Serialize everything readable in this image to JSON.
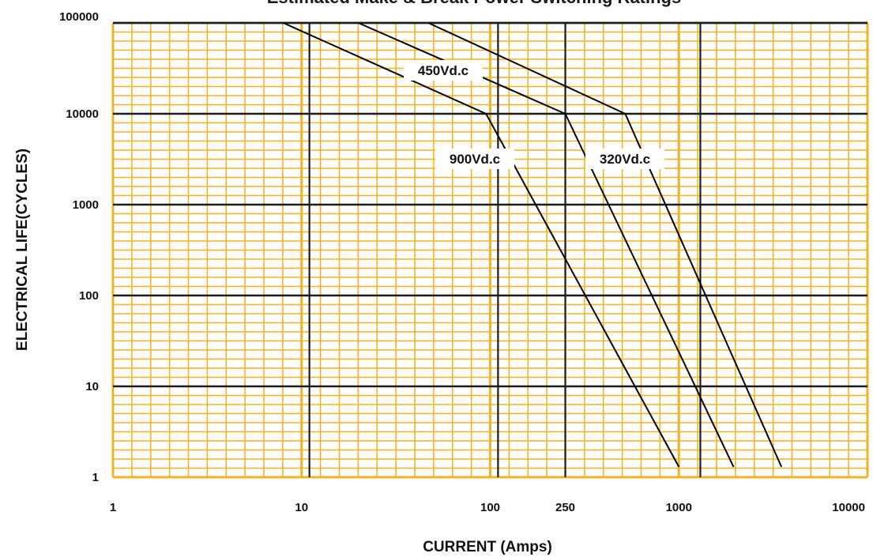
{
  "chart_data": {
    "type": "line",
    "title": "Estimated Make & Break Power Switching Ratings",
    "xlabel": "CURRENT (Amps)",
    "ylabel": "ELECTRICAL LIFE(CYCLES)",
    "x_scale": "log",
    "y_scale": "log",
    "xlim": [
      1,
      10000
    ],
    "ylim": [
      1,
      100000
    ],
    "x_ticks": [
      {
        "value": 1,
        "label": "1"
      },
      {
        "value": 10,
        "label": "10"
      },
      {
        "value": 100,
        "label": "100"
      },
      {
        "value": 250,
        "label": "250"
      },
      {
        "value": 1000,
        "label": "1000"
      },
      {
        "value": 10000,
        "label": "10000"
      }
    ],
    "y_ticks": [
      {
        "value": 1,
        "label": "1"
      },
      {
        "value": 10,
        "label": "10"
      },
      {
        "value": 100,
        "label": "100"
      },
      {
        "value": 1000,
        "label": "1000"
      },
      {
        "value": 10000,
        "label": "10000"
      },
      {
        "value": 100000,
        "label": "100000"
      }
    ],
    "x_reference_lines": [
      11,
      110,
      250,
      1300
    ],
    "grid": true,
    "series": [
      {
        "name": "900Vd.c",
        "x": [
          8,
          95,
          1000
        ],
        "y": [
          100000,
          10000,
          1.3
        ]
      },
      {
        "name": "450Vd.c",
        "x": [
          20,
          250,
          1950
        ],
        "y": [
          100000,
          10000,
          1.3
        ]
      },
      {
        "name": "320Vd.c",
        "x": [
          47,
          520,
          3500
        ],
        "y": [
          100000,
          10000,
          1.3
        ]
      }
    ],
    "colors": {
      "grid": "#f0b429",
      "major_grid": "#1c1c1c",
      "series": "#000000",
      "background": "#ffffff"
    }
  }
}
